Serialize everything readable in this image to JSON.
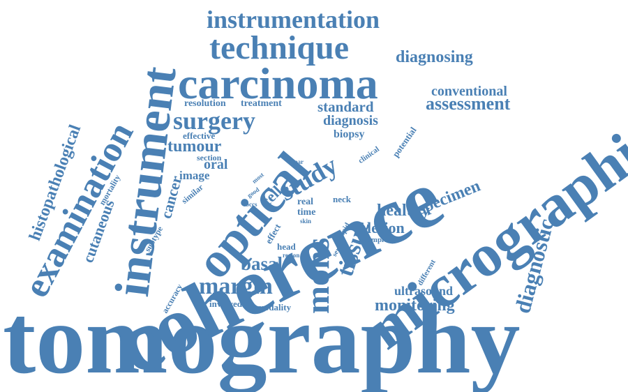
{
  "colors": {
    "word": "#4a80b4",
    "background": "#ffffff"
  },
  "words": [
    {
      "id": "tomography",
      "text": "tomography"
    },
    {
      "id": "coherence",
      "text": "coherence"
    },
    {
      "id": "micrographic",
      "text": "micrographic"
    },
    {
      "id": "carcinoma",
      "text": "carcinoma"
    },
    {
      "id": "instrument",
      "text": "instrument"
    },
    {
      "id": "optical",
      "text": "optical"
    },
    {
      "id": "examination",
      "text": "examination"
    },
    {
      "id": "technique",
      "text": "technique"
    },
    {
      "id": "instrumentation",
      "text": "instrumentation"
    },
    {
      "id": "mohs",
      "text": "mohs"
    },
    {
      "id": "histopathological",
      "text": "histopathological"
    },
    {
      "id": "surgery",
      "text": "surgery"
    },
    {
      "id": "study",
      "text": "study"
    },
    {
      "id": "tissue",
      "text": "tissue"
    },
    {
      "id": "margin",
      "text": "margin"
    },
    {
      "id": "diagnostic",
      "text": "diagnostic"
    },
    {
      "id": "monitoring",
      "text": "monitoring"
    },
    {
      "id": "assessment",
      "text": "assessment"
    },
    {
      "id": "diagnosing",
      "text": "diagnosing"
    },
    {
      "id": "cutaneous",
      "text": "cutaneous"
    },
    {
      "id": "basal",
      "text": "basal"
    },
    {
      "id": "specimen",
      "text": "specimen"
    },
    {
      "id": "healthy",
      "text": "healthy"
    },
    {
      "id": "conventional",
      "text": "conventional"
    },
    {
      "id": "tumour",
      "text": "tumour"
    },
    {
      "id": "standard",
      "text": "standard"
    },
    {
      "id": "diagnosis",
      "text": "diagnosis"
    },
    {
      "id": "lesion",
      "text": "lesion"
    },
    {
      "id": "cancer",
      "text": "cancer"
    },
    {
      "id": "ultrasound",
      "text": "ultrasound"
    },
    {
      "id": "cell",
      "text": "cell"
    },
    {
      "id": "oral",
      "text": "oral"
    },
    {
      "id": "image",
      "text": "image"
    },
    {
      "id": "resolution",
      "text": "resolution"
    },
    {
      "id": "treatment",
      "text": "treatment"
    },
    {
      "id": "biopsy",
      "text": "biopsy"
    },
    {
      "id": "effective",
      "text": "effective"
    },
    {
      "id": "section",
      "text": "section"
    },
    {
      "id": "potential",
      "text": "potential"
    },
    {
      "id": "clinical",
      "text": "clinical"
    },
    {
      "id": "mortality",
      "text": "mortality"
    },
    {
      "id": "similar",
      "text": "similar"
    },
    {
      "id": "subtype",
      "text": "subtype"
    },
    {
      "id": "most",
      "text": "most"
    },
    {
      "id": "year",
      "text": "year"
    },
    {
      "id": "good",
      "text": "good"
    },
    {
      "id": "bccs",
      "text": "bccs"
    },
    {
      "id": "real",
      "text": "real"
    },
    {
      "id": "time",
      "text": "time"
    },
    {
      "id": "skin",
      "text": "skin"
    },
    {
      "id": "neck",
      "text": "neck"
    },
    {
      "id": "effect",
      "text": "effect"
    },
    {
      "id": "head",
      "text": "head"
    },
    {
      "id": "region",
      "text": "region"
    },
    {
      "id": "rapid",
      "text": "rapid"
    },
    {
      "id": "series",
      "text": "series"
    },
    {
      "id": "sample",
      "text": "sample"
    },
    {
      "id": "different",
      "text": "different"
    },
    {
      "id": "accuracy",
      "text": "accuracy"
    },
    {
      "id": "involved",
      "text": "involved"
    },
    {
      "id": "modality",
      "text": "modality"
    }
  ]
}
